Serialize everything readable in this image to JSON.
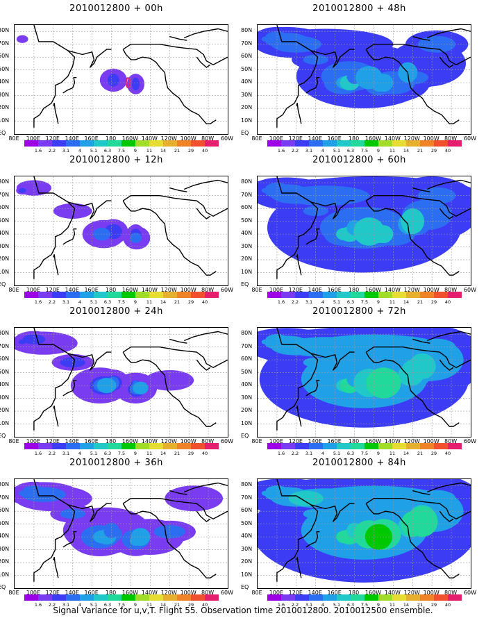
{
  "caption": "Signal Variance for u,v,T. Flight 55. Observation time 2010012800. 2010012500 ensemble.",
  "x_axis_labels": [
    "80E",
    "100E",
    "120E",
    "140E",
    "160E",
    "180",
    "160W",
    "140W",
    "120W",
    "100W",
    "80W",
    "60W"
  ],
  "y_axis_labels": [
    "80N",
    "70N",
    "60N",
    "50N",
    "40N",
    "30N",
    "20N",
    "10N",
    "EQ"
  ],
  "colorbar": {
    "labels": [
      "1.6",
      "2.2",
      "3.1",
      "4",
      "5.1",
      "6.3",
      "7.5",
      "9",
      "11",
      "14",
      "21",
      "29",
      "40"
    ],
    "colors": [
      "#9b00e6",
      "#7a3cf0",
      "#3c3cf5",
      "#2b6ef2",
      "#20a0e6",
      "#20c8c8",
      "#20d99a",
      "#00c800",
      "#a0dc28",
      "#e6dc32",
      "#e6af2d",
      "#f08228",
      "#f0502d",
      "#e61e6e"
    ]
  },
  "panels": [
    {
      "title": "2010012800 + 00h",
      "intensity": 0
    },
    {
      "title": "2010012800 + 12h",
      "intensity": 1
    },
    {
      "title": "2010012800 + 24h",
      "intensity": 2
    },
    {
      "title": "2010012800 + 36h",
      "intensity": 3
    },
    {
      "title": "2010012800 + 48h",
      "intensity": 4
    },
    {
      "title": "2010012800 + 60h",
      "intensity": 5
    },
    {
      "title": "2010012800 + 72h",
      "intensity": 6
    },
    {
      "title": "2010012800 + 84h",
      "intensity": 7
    }
  ]
}
